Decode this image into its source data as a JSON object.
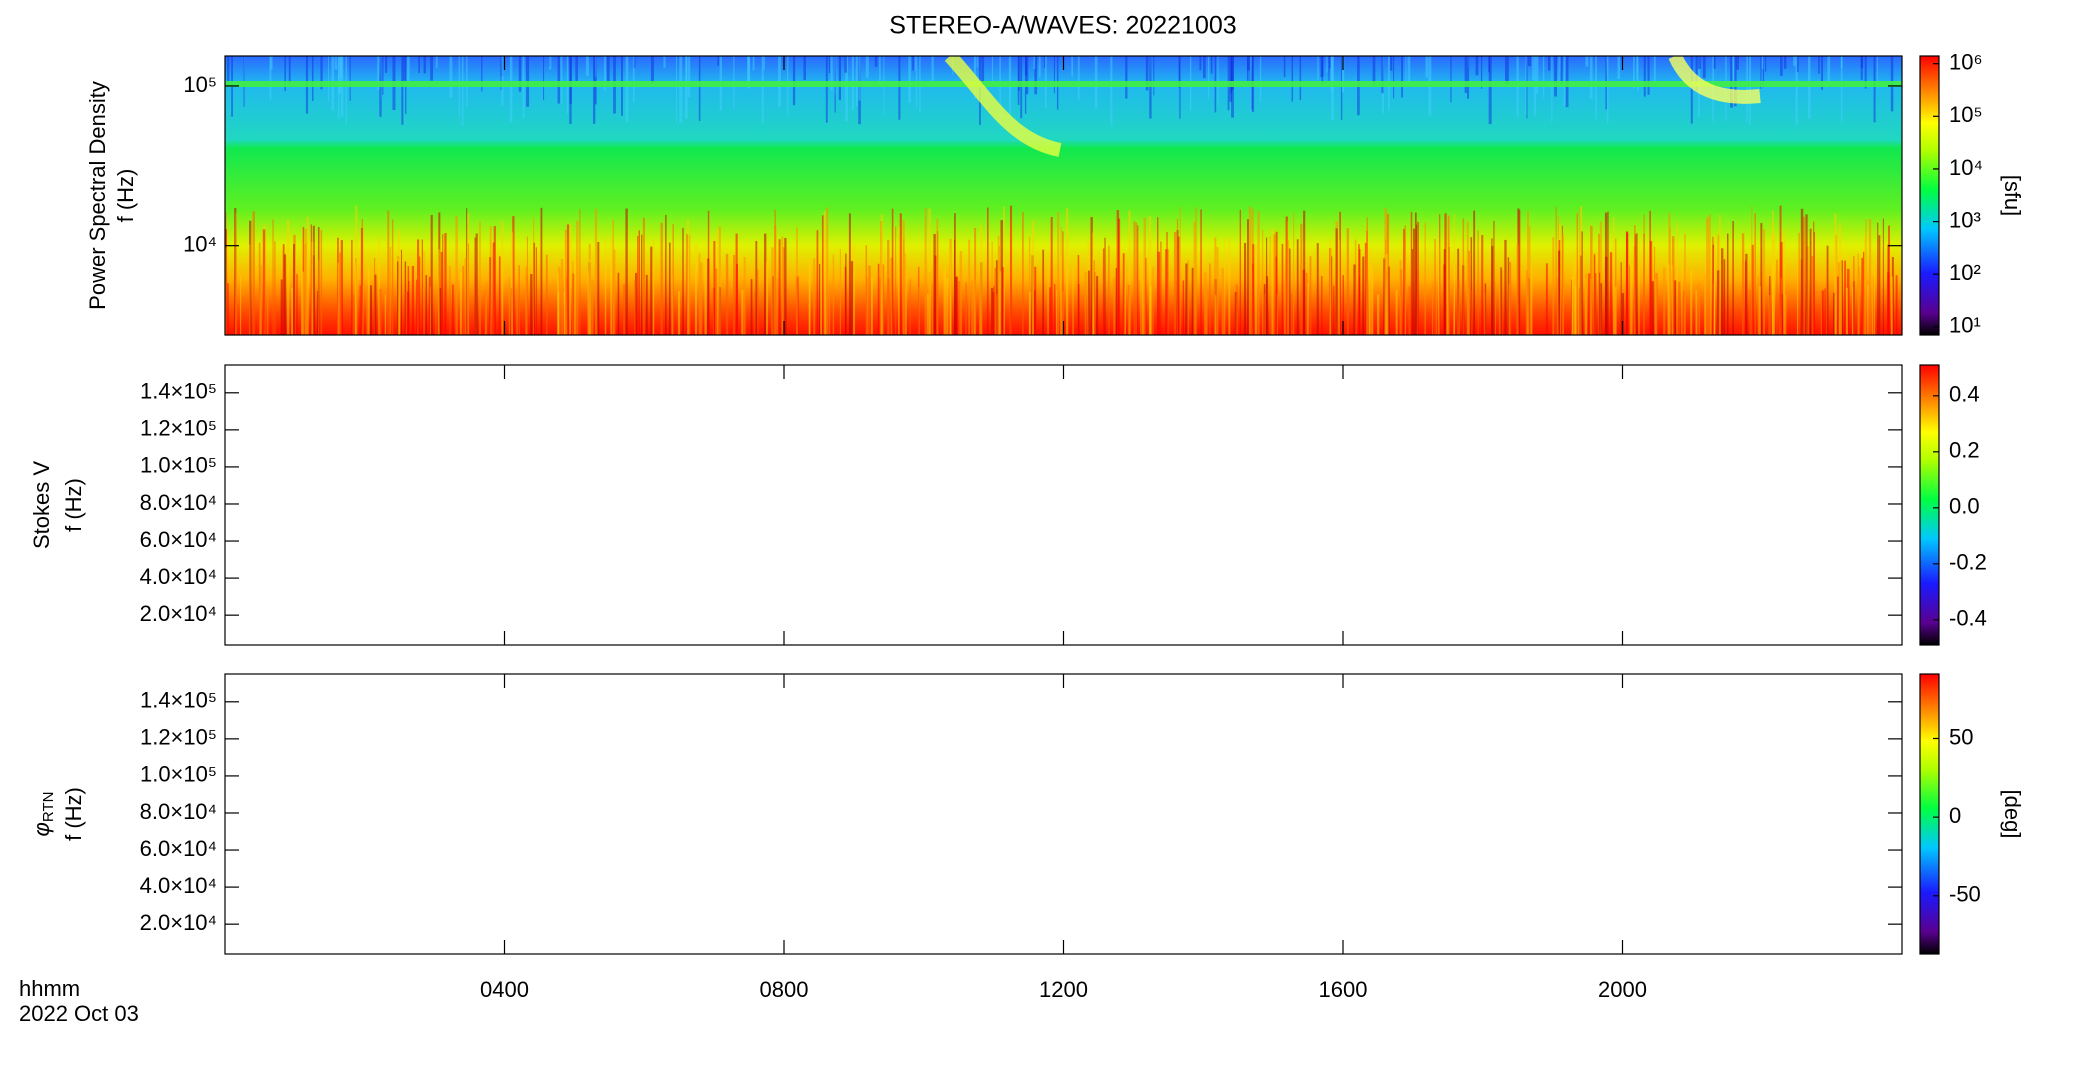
{
  "chart_data": [
    {
      "type": "spectrogram",
      "title": "STEREO-A/WAVES: 20221003",
      "ylabel": [
        "Power Spectral Density",
        "f (Hz)"
      ],
      "ylog": true,
      "ylim": [
        2760,
        154000
      ],
      "yticks": [
        {
          "value": 10000,
          "label": "10⁴"
        },
        {
          "value": 100000,
          "label": "10⁵"
        }
      ],
      "xlim": [
        0,
        24
      ],
      "colorbar": {
        "label": "[sfu]",
        "log": true,
        "lim": [
          7,
          1400000
        ],
        "ticks": [
          {
            "value": 10,
            "label": "10¹"
          },
          {
            "value": 100,
            "label": "10²"
          },
          {
            "value": 1000,
            "label": "10³"
          },
          {
            "value": 10000,
            "label": "10⁴"
          },
          {
            "value": 100000,
            "label": "10⁵"
          },
          {
            "value": 1000000,
            "label": "10⁶"
          }
        ]
      }
    },
    {
      "type": "spectrogram",
      "ylabel": [
        "Stokes V",
        "f (Hz)"
      ],
      "ylog": false,
      "ylim": [
        3900,
        155000
      ],
      "yticks": [
        {
          "value": 20000,
          "label": "2.0×10⁴"
        },
        {
          "value": 40000,
          "label": "4.0×10⁴"
        },
        {
          "value": 60000,
          "label": "6.0×10⁴"
        },
        {
          "value": 80000,
          "label": "8.0×10⁴"
        },
        {
          "value": 100000,
          "label": "1.0×10⁵"
        },
        {
          "value": 120000,
          "label": "1.2×10⁵"
        },
        {
          "value": 140000,
          "label": "1.4×10⁵"
        }
      ],
      "xlim": [
        0,
        24
      ],
      "colorbar": {
        "log": false,
        "lim": [
          -0.49,
          0.51
        ],
        "ticks": [
          -0.4,
          -0.2,
          {
            "value": 0,
            "label": "0.0"
          },
          0.2,
          0.4
        ]
      }
    },
    {
      "type": "spectrogram",
      "ylabel": [
        {
          "symbol": "φ",
          "subscript": "RTN"
        },
        "f (Hz)"
      ],
      "ylog": false,
      "ylim": [
        3900,
        155000
      ],
      "yticks": [
        {
          "value": 20000,
          "label": "2.0×10⁴"
        },
        {
          "value": 40000,
          "label": "4.0×10⁴"
        },
        {
          "value": 60000,
          "label": "6.0×10⁴"
        },
        {
          "value": 80000,
          "label": "8.0×10⁴"
        },
        {
          "value": 100000,
          "label": "1.0×10⁵"
        },
        {
          "value": 120000,
          "label": "1.2×10⁵"
        },
        {
          "value": 140000,
          "label": "1.4×10⁵"
        }
      ],
      "xlim": [
        0,
        24
      ],
      "xticks": [
        {
          "value": 4,
          "label": "0400"
        },
        {
          "value": 8,
          "label": "0800"
        },
        {
          "value": 12,
          "label": "1200"
        },
        {
          "value": 16,
          "label": "1600"
        },
        {
          "value": 20,
          "label": "2000"
        }
      ],
      "xlabel": [
        "hhmm",
        "2022 Oct 03"
      ],
      "colorbar": {
        "label": "[deg]",
        "log": false,
        "lim": [
          -87,
          91
        ],
        "ticks": [
          -50,
          0,
          50
        ]
      }
    }
  ]
}
